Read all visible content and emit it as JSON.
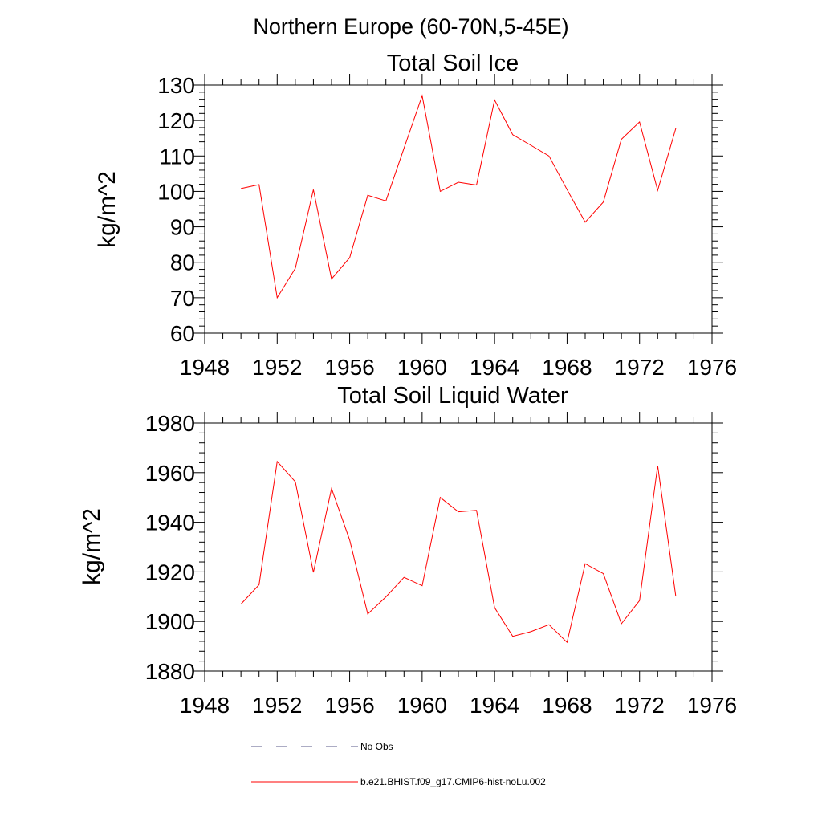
{
  "figure": {
    "suptitle": "Northern Europe (60-70N,5-45E)",
    "legend": [
      {
        "label": "No Obs",
        "style": "dashed",
        "color": "#5a5a8a"
      },
      {
        "label": "b.e21.BHIST.f09_g17.CMIP6-hist-noLu.002",
        "style": "solid",
        "color": "#ff0000"
      }
    ]
  },
  "chart_data": [
    {
      "type": "line",
      "title": "Total Soil Ice",
      "xlabel": "",
      "ylabel": "kg/m^2",
      "xlim": [
        1948,
        1976
      ],
      "ylim": [
        60,
        130
      ],
      "xticks": [
        1948,
        1952,
        1956,
        1960,
        1964,
        1968,
        1972,
        1976
      ],
      "xtick_labels": [
        "1948",
        "1952",
        "1956",
        "1960",
        "1964",
        "1968",
        "1972",
        "1976"
      ],
      "yticks": [
        60,
        70,
        80,
        90,
        100,
        110,
        120,
        130
      ],
      "ytick_labels": [
        "60",
        "70",
        "80",
        "90",
        "100",
        "110",
        "120",
        "130"
      ],
      "grid": false,
      "x": [
        1950,
        1951,
        1952,
        1953,
        1954,
        1955,
        1956,
        1957,
        1958,
        1959,
        1960,
        1961,
        1962,
        1963,
        1964,
        1965,
        1966,
        1967,
        1968,
        1969,
        1970,
        1971,
        1972,
        1973,
        1974
      ],
      "series": [
        {
          "name": "b.e21.BHIST.f09_g17.CMIP6-hist-noLu.002",
          "color": "#ff0000",
          "values": [
            100.8,
            101.9,
            70.0,
            78.3,
            100.5,
            75.3,
            81.3,
            98.9,
            97.3,
            112.2,
            127.0,
            100.0,
            102.6,
            101.8,
            125.8,
            116.0,
            113.0,
            110.0,
            100.5,
            91.3,
            97.0,
            114.7,
            119.6,
            100.3,
            117.8
          ]
        }
      ]
    },
    {
      "type": "line",
      "title": "Total Soil Liquid Water",
      "xlabel": "",
      "ylabel": "kg/m^2",
      "xlim": [
        1948,
        1976
      ],
      "ylim": [
        1880,
        1980
      ],
      "xticks": [
        1948,
        1952,
        1956,
        1960,
        1964,
        1968,
        1972,
        1976
      ],
      "xtick_labels": [
        "1948",
        "1952",
        "1956",
        "1960",
        "1964",
        "1968",
        "1972",
        "1976"
      ],
      "yticks": [
        1880,
        1900,
        1920,
        1940,
        1960,
        1980
      ],
      "ytick_labels": [
        "1880",
        "1900",
        "1920",
        "1940",
        "1960",
        "1980"
      ],
      "grid": false,
      "x": [
        1950,
        1951,
        1952,
        1953,
        1954,
        1955,
        1956,
        1957,
        1958,
        1959,
        1960,
        1961,
        1962,
        1963,
        1964,
        1965,
        1966,
        1967,
        1968,
        1969,
        1970,
        1971,
        1972,
        1973,
        1974
      ],
      "series": [
        {
          "name": "b.e21.BHIST.f09_g17.CMIP6-hist-noLu.002",
          "color": "#ff0000",
          "values": [
            1907.0,
            1914.8,
            1964.5,
            1956.3,
            1919.8,
            1953.6,
            1932.8,
            1903.0,
            1909.9,
            1917.8,
            1914.4,
            1950.0,
            1944.2,
            1944.8,
            1905.6,
            1894.0,
            1895.9,
            1898.7,
            1891.6,
            1923.3,
            1919.3,
            1899.1,
            1908.4,
            1962.8,
            1910.1
          ]
        }
      ]
    }
  ]
}
